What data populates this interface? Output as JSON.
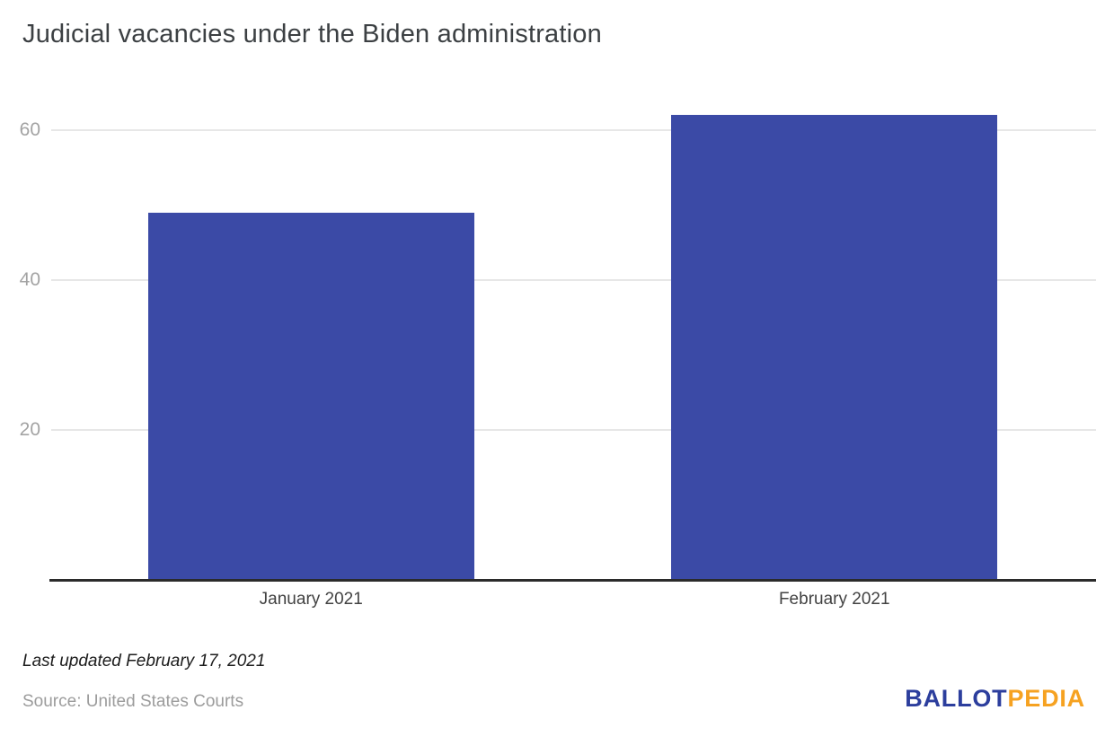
{
  "chart_data": {
    "type": "bar",
    "title": "Judicial vacancies under the Biden administration",
    "categories": [
      "January 2021",
      "February 2021"
    ],
    "values": [
      49,
      62
    ],
    "xlabel": "",
    "ylabel": "",
    "ylim": [
      0,
      65
    ],
    "yticks": [
      20,
      40,
      60
    ],
    "grid": true,
    "legend": "none",
    "bar_color": "#3B4AA6"
  },
  "footer": {
    "last_updated": "Last updated February 17, 2021",
    "source": "Source: United States Courts",
    "logo": {
      "part1": "BALLOT",
      "part2": "PEDIA",
      "part1_color": "#2C3E9D",
      "part2_color": "#F6A221"
    }
  },
  "colors": {
    "bar": "#3B4AA6",
    "gridline": "#E7E7E7",
    "axis_line": "#2B2B2B",
    "tick_label": "#A3A3A3",
    "category_label": "#424242",
    "title": "#3C4043"
  }
}
